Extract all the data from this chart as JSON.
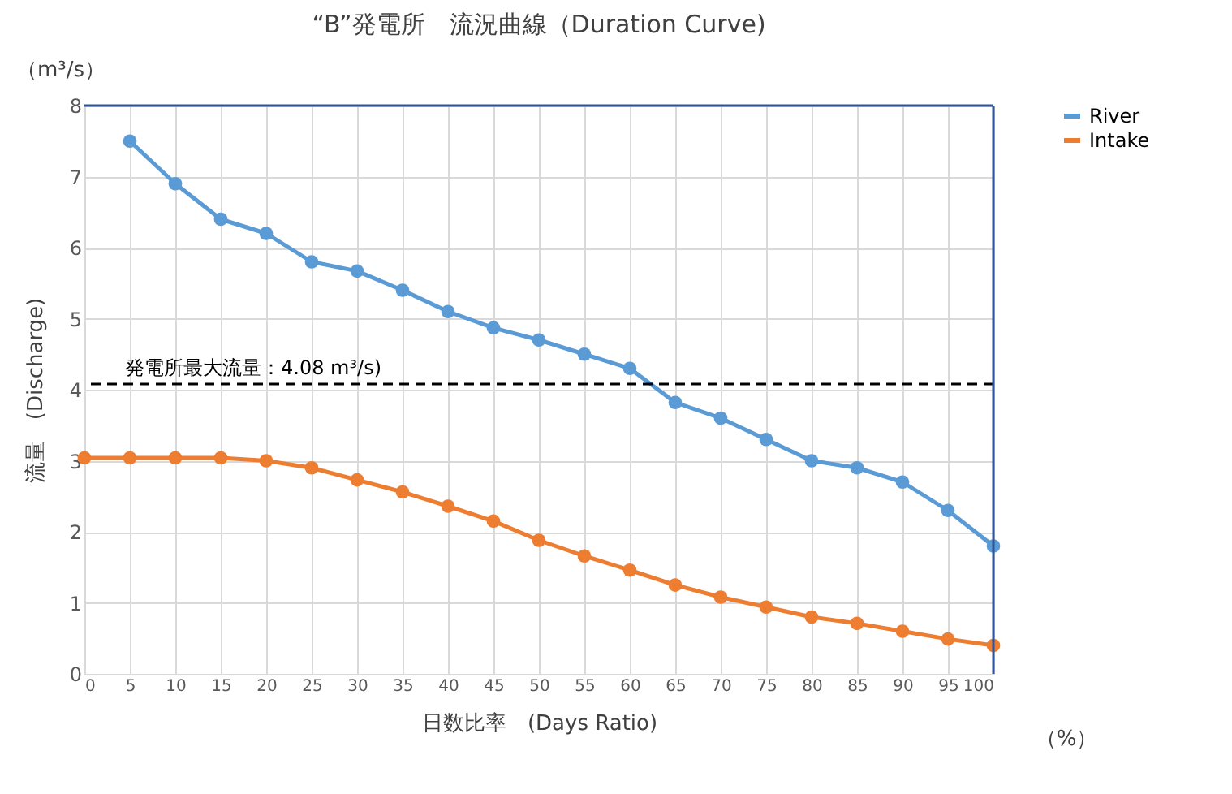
{
  "chart_data": {
    "type": "line",
    "title": "“B”発電所　流況曲線（Duration Curve)",
    "xlabel": "日数比率　(Days Ratio)",
    "ylabel": "流量　(Discharge)",
    "x": [
      0,
      5,
      10,
      15,
      20,
      25,
      30,
      35,
      40,
      45,
      50,
      55,
      60,
      65,
      70,
      75,
      80,
      85,
      90,
      95,
      100
    ],
    "series": [
      {
        "name": "River",
        "color": "#5b9bd5",
        "values": [
          null,
          7.5,
          6.9,
          6.4,
          6.2,
          5.8,
          5.67,
          5.4,
          5.1,
          4.87,
          4.7,
          4.5,
          4.3,
          3.82,
          3.6,
          3.3,
          3.0,
          2.9,
          2.7,
          2.3,
          1.8
        ]
      },
      {
        "name": "Intake",
        "color": "#ed7d31",
        "values": [
          3.04,
          3.04,
          3.04,
          3.04,
          3.0,
          2.9,
          2.73,
          2.56,
          2.36,
          2.15,
          1.88,
          1.66,
          1.46,
          1.25,
          1.08,
          0.94,
          0.8,
          0.71,
          0.6,
          0.49,
          0.4
        ]
      }
    ],
    "xlim": [
      0,
      100
    ],
    "xticks": [
      0,
      5,
      10,
      15,
      20,
      25,
      30,
      35,
      40,
      45,
      50,
      55,
      60,
      65,
      70,
      75,
      80,
      85,
      90,
      95,
      100
    ],
    "ylim": [
      0,
      8
    ],
    "yticks": [
      0,
      1,
      2,
      3,
      4,
      5,
      6,
      7,
      8
    ],
    "ref_lines": [
      {
        "axis": "y",
        "value": 4.08,
        "label": "発電所最大流量：4.08 m³/s)",
        "color": "#000000",
        "line_style": "dashed"
      }
    ],
    "annotations": [
      "（m³/s）",
      "（%）"
    ],
    "grid": true,
    "legend": "right",
    "marker": "circle",
    "line_style": "solid"
  }
}
